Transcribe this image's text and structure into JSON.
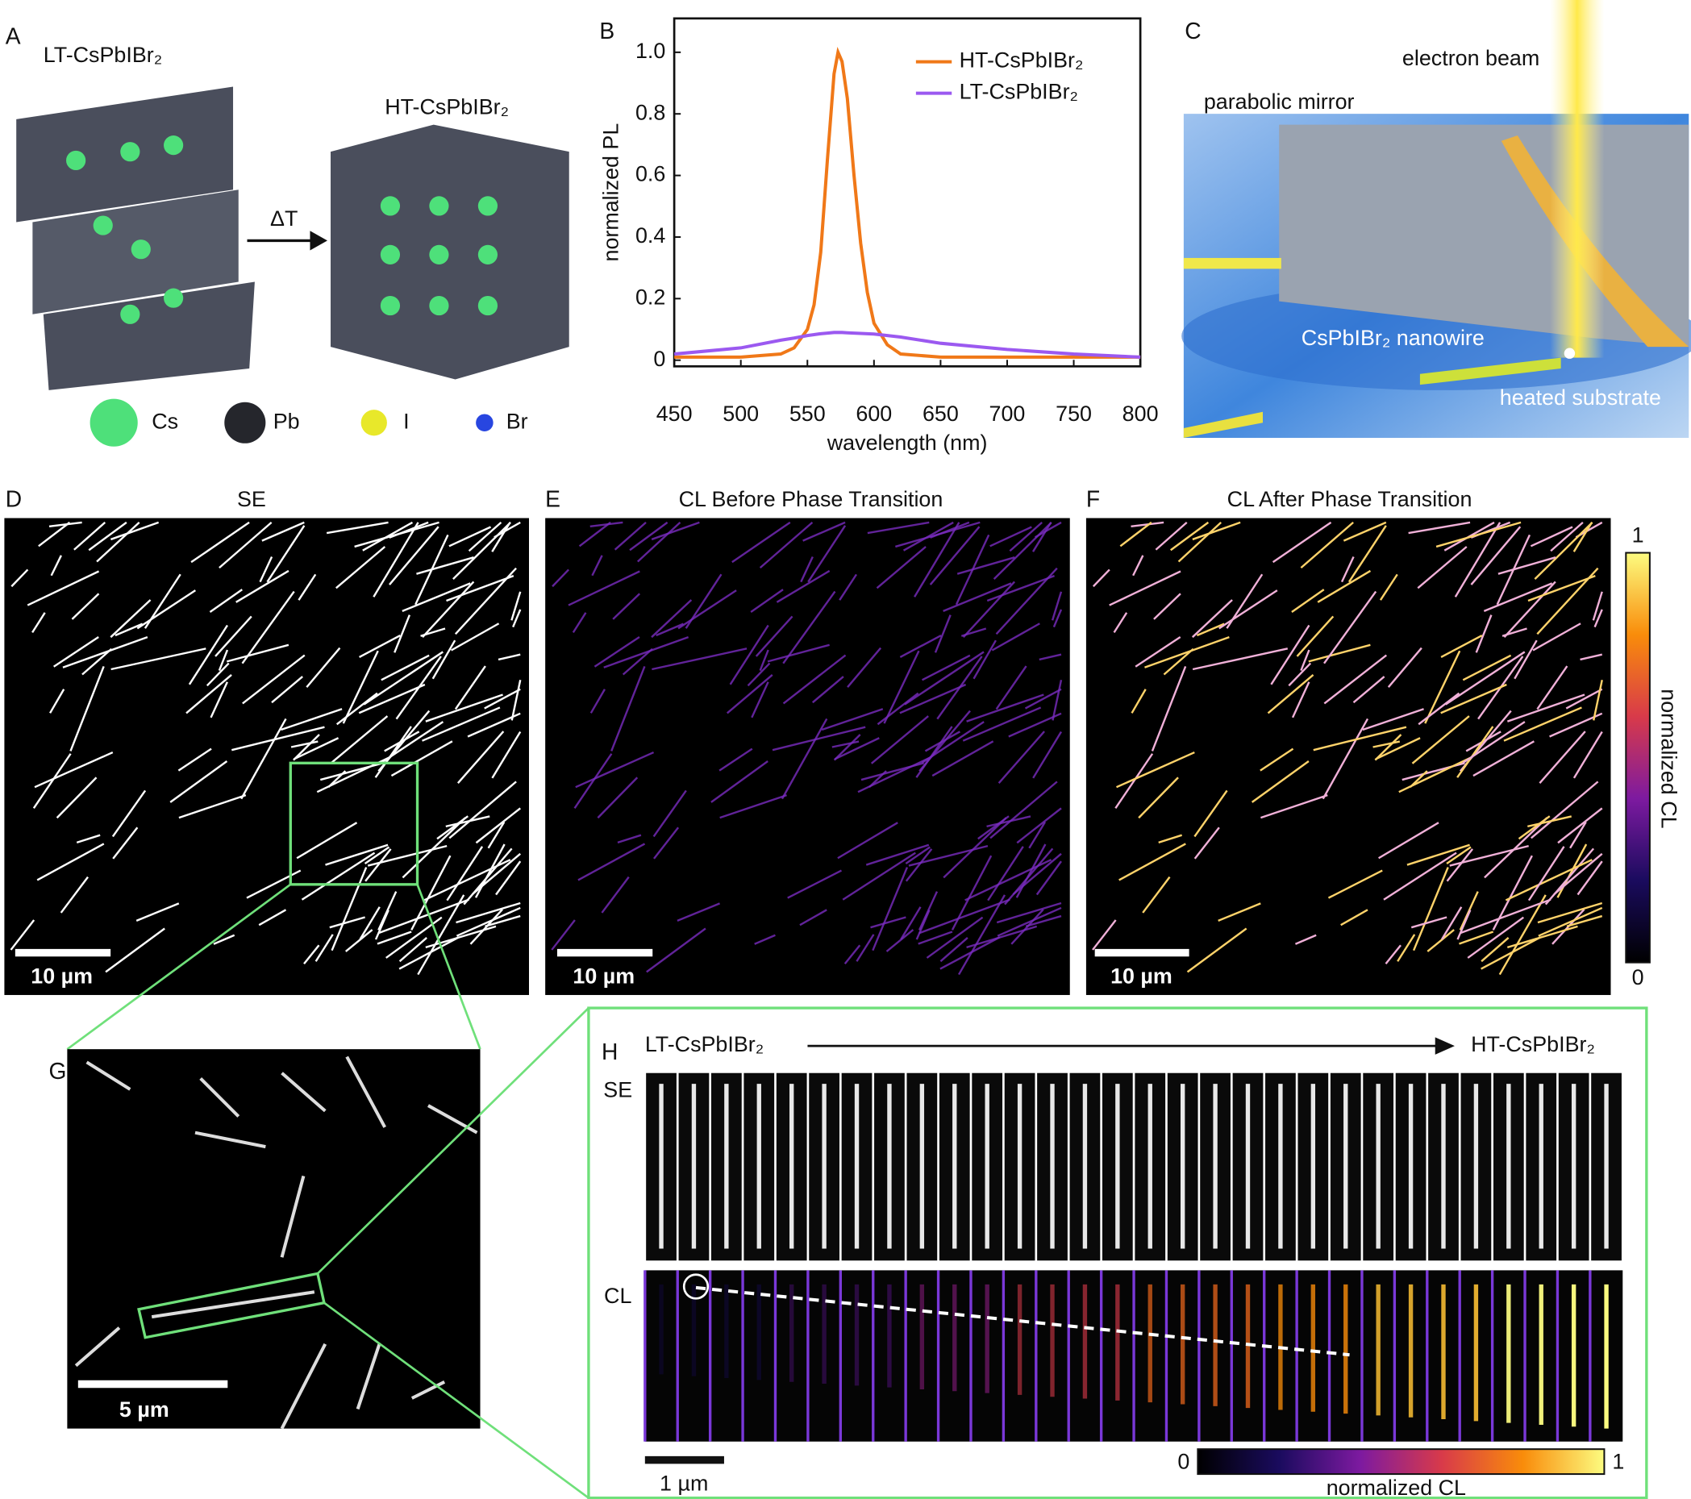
{
  "panel_labels": [
    "A",
    "B",
    "C",
    "D",
    "E",
    "F",
    "G",
    "H"
  ],
  "a": {
    "lt_label": "LT-CsPbIBr₂",
    "ht_label": "HT-CsPbIBr₂",
    "arrow_label": "ΔT",
    "legend": [
      "Cs",
      "Pb",
      "I",
      "Br"
    ]
  },
  "chart_data": {
    "type": "line",
    "xlabel": "wavelength (nm)",
    "ylabel": "normalized PL",
    "x": [
      450,
      500,
      530,
      540,
      550,
      555,
      560,
      565,
      570,
      573,
      576,
      580,
      585,
      590,
      595,
      600,
      610,
      620,
      650,
      700,
      750,
      800
    ],
    "series": [
      {
        "name": "HT-CsPbIBr₂",
        "color": "#f07818",
        "values": [
          0.01,
          0.01,
          0.02,
          0.04,
          0.1,
          0.18,
          0.35,
          0.65,
          0.93,
          1.0,
          0.97,
          0.85,
          0.6,
          0.38,
          0.22,
          0.12,
          0.05,
          0.02,
          0.01,
          0.01,
          0.01,
          0.01
        ]
      },
      {
        "name": "LT-CsPbIBr₂",
        "color": "#9b59f0",
        "values": [
          0.02,
          0.04,
          0.065,
          0.072,
          0.08,
          0.083,
          0.086,
          0.088,
          0.09,
          0.09,
          0.09,
          0.089,
          0.088,
          0.087,
          0.086,
          0.085,
          0.08,
          0.075,
          0.055,
          0.035,
          0.02,
          0.01
        ]
      }
    ],
    "xlim": [
      450,
      800
    ],
    "xticks": [
      450,
      500,
      550,
      600,
      650,
      700,
      750,
      800
    ],
    "ylim": [
      -0.02,
      1.11
    ],
    "yticks": [
      0,
      0.2,
      0.4,
      0.6,
      0.8,
      {
        "value": 1,
        "label": "1.0"
      }
    ],
    "legend": "upper right",
    "grid": false
  },
  "c": {
    "electron_beam": "electron beam",
    "mirror": "parabolic mirror",
    "nanowire": "CsPbIBr₂ nanowire",
    "substrate": "heated substrate"
  },
  "d": {
    "title": "SE",
    "scale_bar": "10 µm"
  },
  "e": {
    "title": "CL Before Phase Transition",
    "scale_bar": "10 µm"
  },
  "f": {
    "title": "CL After Phase Transition",
    "scale_bar": "10 µm",
    "colorbar": {
      "max": 1,
      "min": 0,
      "label": "normalized CL"
    }
  },
  "g": {
    "scale_bar": "5 µm"
  },
  "h": {
    "start": "LT-CsPbIBr₂",
    "end": "HT-CsPbIBr₂",
    "rows": [
      "SE",
      "CL"
    ],
    "scale_bar": "1 µm",
    "colorbar": {
      "min": 0,
      "max": 1,
      "label": "normalized CL"
    }
  }
}
